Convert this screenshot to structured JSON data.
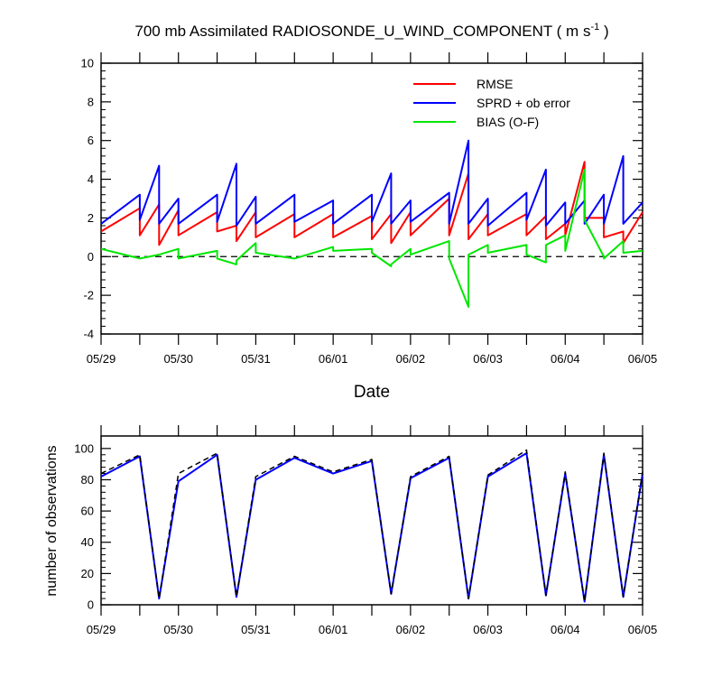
{
  "chart_data": [
    {
      "type": "line",
      "title": "700 mb Assimilated RADIOSONDE_U_WIND_COMPONENT ( m s",
      "title_sup": "-1",
      "title_end": " )",
      "xlabel": "Date",
      "ylabel": "",
      "xlim": [
        0,
        7
      ],
      "ylim": [
        -4,
        10
      ],
      "yticks": [
        -4,
        -2,
        0,
        2,
        4,
        6,
        8,
        10
      ],
      "ytick_labels": [
        "-4",
        "-2",
        "0",
        "2",
        "4",
        "6",
        "8",
        "10"
      ],
      "xticks": [
        0,
        1,
        2,
        3,
        4,
        5,
        6,
        7
      ],
      "xtick_labels": [
        "05/29",
        "05/30",
        "05/31",
        "06/01",
        "06/02",
        "06/03",
        "06/04",
        "06/05"
      ],
      "legend_position": "top-right",
      "reference_line": {
        "y": 0,
        "style": "dashed",
        "color": "#000000"
      },
      "series": [
        {
          "name": "RMSE",
          "color": "#ff0000",
          "x": [
            0,
            0.5,
            0.5,
            0.75,
            0.75,
            1,
            1,
            1.5,
            1.5,
            1.75,
            1.75,
            2,
            2,
            2.5,
            2.5,
            3,
            3,
            3.5,
            3.5,
            3.75,
            3.75,
            4,
            4,
            4.5,
            4.5,
            4.75,
            4.75,
            5,
            5,
            5.5,
            5.5,
            5.75,
            5.75,
            6,
            6,
            6.25,
            6.25,
            6.5,
            6.5,
            6.75,
            6.75,
            7
          ],
          "values": [
            1.3,
            2.5,
            1.1,
            2.7,
            0.6,
            2.4,
            1.1,
            2.3,
            1.3,
            1.6,
            0.8,
            2.3,
            1.0,
            2.2,
            1.0,
            2.2,
            1.0,
            2.1,
            0.9,
            2.2,
            0.7,
            2.3,
            1.1,
            3.0,
            1.1,
            4.3,
            0.9,
            2.2,
            1.1,
            2.2,
            1.1,
            2.1,
            0.9,
            1.7,
            1.1,
            4.9,
            2.0,
            2.0,
            1.0,
            1.3,
            0.7,
            2.3
          ]
        },
        {
          "name": "SPRD + ob error",
          "color": "#0000ff",
          "x": [
            0,
            0.5,
            0.5,
            0.75,
            0.75,
            1,
            1,
            1.5,
            1.5,
            1.75,
            1.75,
            2,
            2,
            2.5,
            2.5,
            3,
            3,
            3.5,
            3.5,
            3.75,
            3.75,
            4,
            4,
            4.5,
            4.5,
            4.75,
            4.75,
            5,
            5,
            5.5,
            5.5,
            5.75,
            5.75,
            6,
            6,
            6.25,
            6.25,
            6.5,
            6.5,
            6.75,
            6.75,
            7
          ],
          "values": [
            1.7,
            3.2,
            1.9,
            4.7,
            1.7,
            3.0,
            1.7,
            3.2,
            1.8,
            4.8,
            1.6,
            3.1,
            1.7,
            3.2,
            1.8,
            2.9,
            1.7,
            3.2,
            1.8,
            4.3,
            1.7,
            2.9,
            1.8,
            3.3,
            1.7,
            6.0,
            1.7,
            3.0,
            1.6,
            3.3,
            1.9,
            4.5,
            1.6,
            2.8,
            1.7,
            2.9,
            1.7,
            3.2,
            1.7,
            5.2,
            1.7,
            2.8
          ]
        },
        {
          "name": "BIAS (O-F)",
          "color": "#00e600",
          "x": [
            0,
            0.5,
            0.75,
            0.75,
            1,
            1,
            1.5,
            1.5,
            1.75,
            1.75,
            2,
            2,
            2.5,
            2.5,
            3,
            3,
            3.5,
            3.5,
            3.75,
            3.75,
            4,
            4,
            4.5,
            4.5,
            4.75,
            4.75,
            5,
            5,
            5.5,
            5.5,
            5.75,
            5.75,
            6,
            6,
            6.25,
            6.25,
            6.5,
            6.5,
            6.75,
            6.75,
            7
          ],
          "values": [
            0.4,
            -0.1,
            0.1,
            0.1,
            0.4,
            -0.1,
            0.3,
            -0.1,
            -0.4,
            -0.2,
            0.7,
            0.2,
            -0.1,
            -0.1,
            0.5,
            0.3,
            0.4,
            0.2,
            -0.5,
            -0.4,
            0.4,
            0.1,
            0.8,
            -0.1,
            -2.6,
            0.1,
            0.6,
            0.2,
            0.6,
            0.1,
            -0.3,
            0.6,
            1.1,
            0.3,
            4.5,
            1.9,
            0.0,
            -0.1,
            0.8,
            0.2,
            0.3
          ]
        }
      ]
    },
    {
      "type": "line",
      "title": "",
      "xlabel": "",
      "ylabel": "number of observations",
      "xlim": [
        0,
        7
      ],
      "ylim": [
        0,
        108
      ],
      "yticks": [
        0,
        20,
        40,
        60,
        80,
        100
      ],
      "ytick_labels": [
        "0",
        "20",
        "40",
        "60",
        "80",
        "100"
      ],
      "xticks": [
        0,
        1,
        2,
        3,
        4,
        5,
        6,
        7
      ],
      "xtick_labels": [
        "05/29",
        "05/30",
        "05/31",
        "06/01",
        "06/02",
        "06/03",
        "06/04",
        "06/05"
      ],
      "series": [
        {
          "color": "#0000ff",
          "style": "solid",
          "x": [
            0,
            0.5,
            0.75,
            1,
            1.5,
            1.75,
            2,
            2.5,
            3,
            3.5,
            3.75,
            4,
            4.5,
            4.75,
            5,
            5.5,
            5.75,
            6,
            6.25,
            6.5,
            6.75,
            7
          ],
          "values": [
            82,
            95,
            4,
            79,
            96,
            5,
            80,
            94,
            84,
            92,
            7,
            81,
            94,
            4,
            82,
            97,
            6,
            84,
            2,
            96,
            5,
            84
          ]
        },
        {
          "color": "#000000",
          "style": "dashed",
          "x": [
            0,
            0.5,
            0.75,
            1,
            1.5,
            1.75,
            2,
            2.5,
            3,
            3.5,
            3.75,
            4,
            4.5,
            4.75,
            5,
            5.5,
            5.75,
            6,
            6.25,
            6.5,
            6.75,
            7
          ],
          "values": [
            84,
            96,
            4,
            84,
            97,
            5,
            82,
            95,
            85,
            93,
            7,
            82,
            95,
            4,
            83,
            99,
            6,
            85,
            2,
            97,
            5,
            85
          ]
        }
      ]
    }
  ]
}
